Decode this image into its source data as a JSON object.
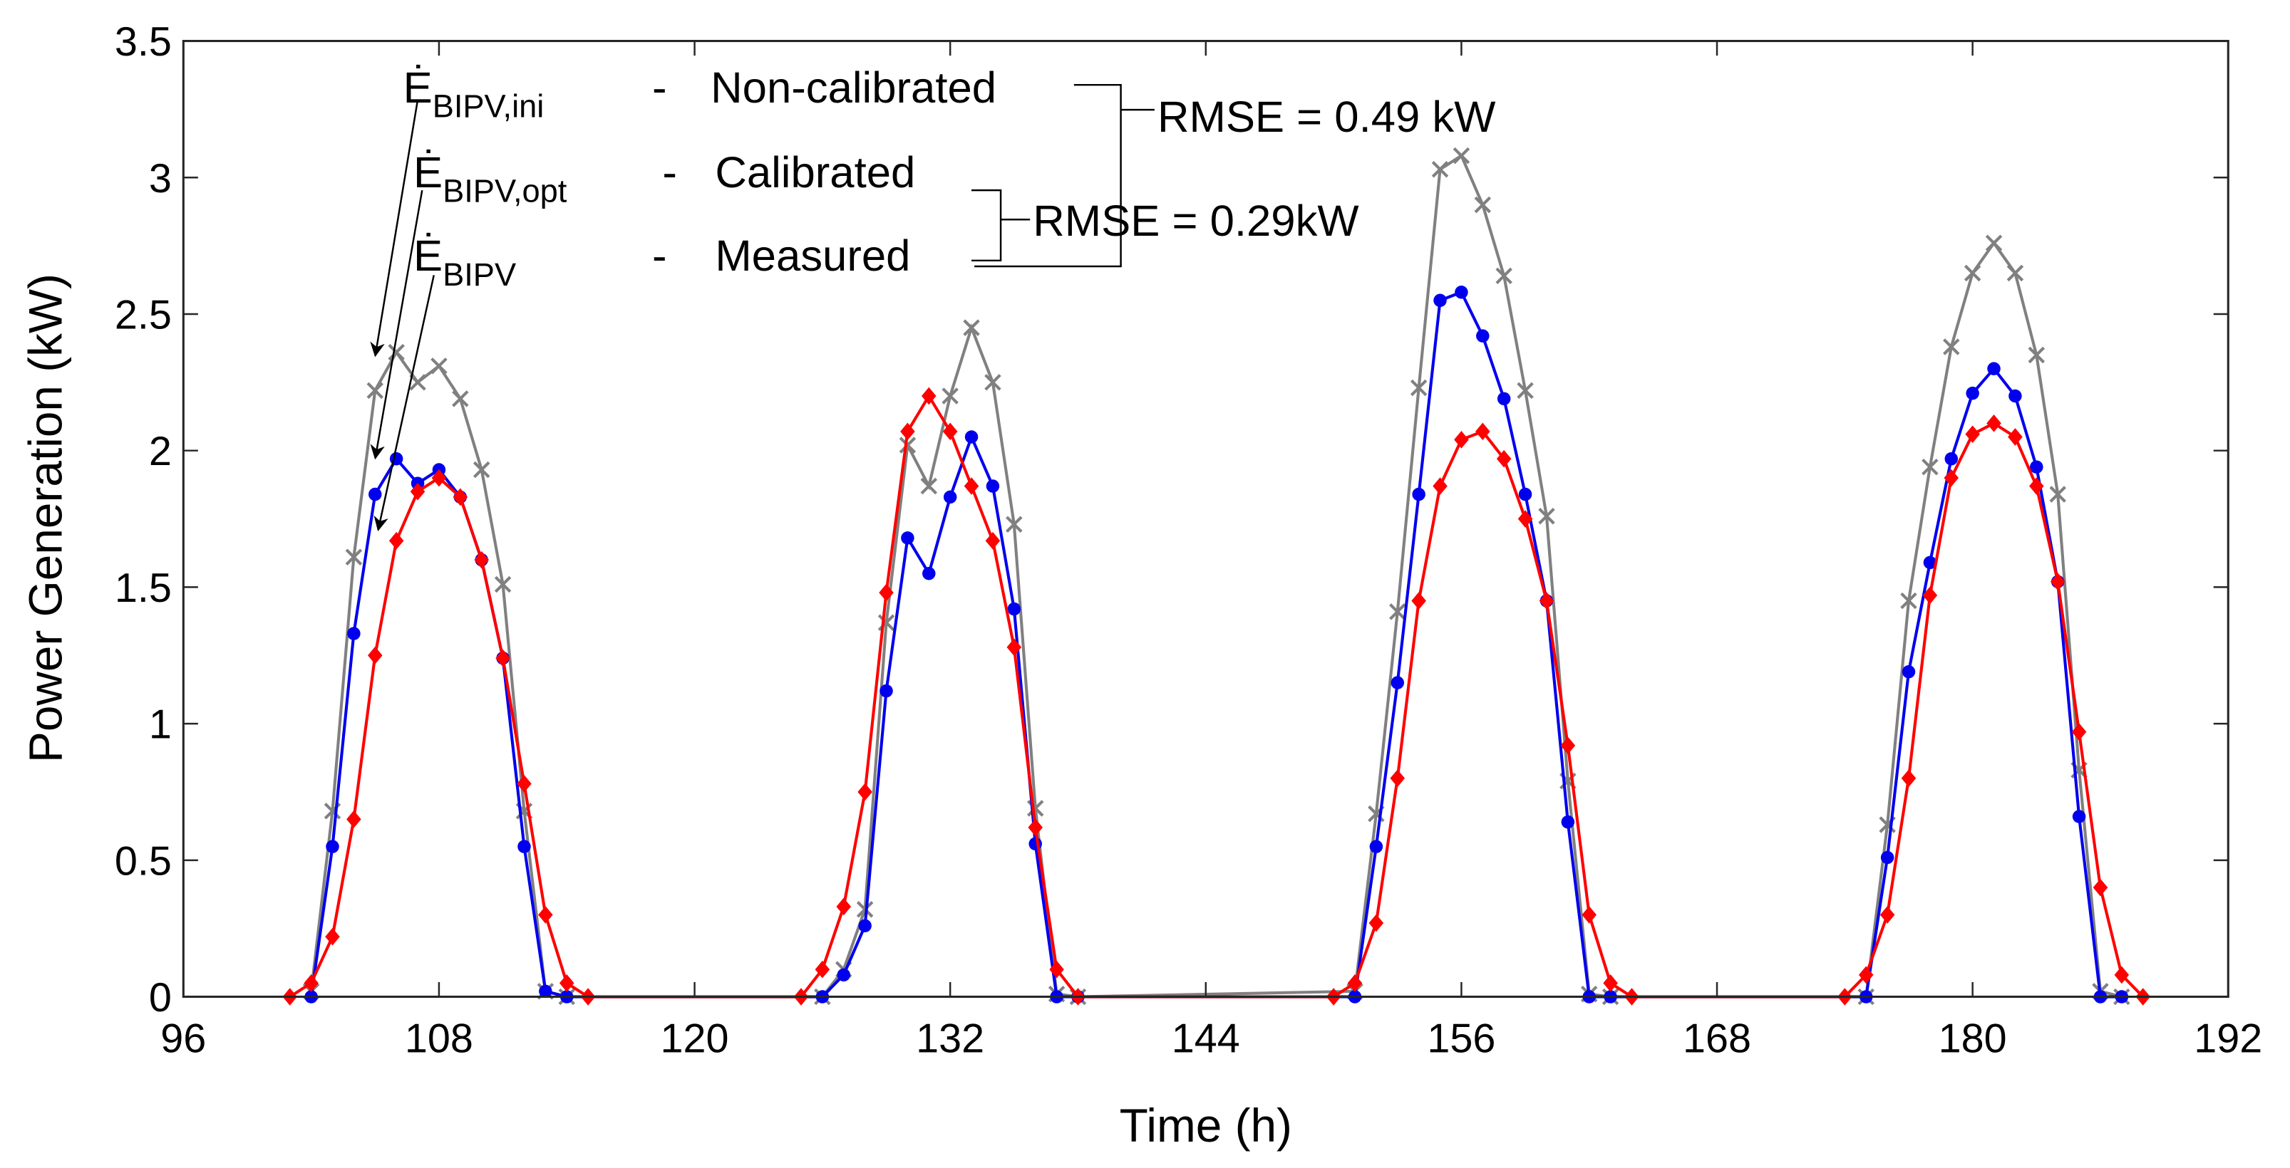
{
  "chart_data": {
    "type": "line",
    "xlabel": "Time (h)",
    "ylabel": "Power Generation (kW)",
    "xlim": [
      96,
      192
    ],
    "xticks": [
      96,
      108,
      120,
      132,
      144,
      156,
      168,
      180,
      192
    ],
    "ylim": [
      0,
      3.5
    ],
    "yticks": [
      0,
      0.5,
      1,
      1.5,
      2,
      2.5,
      3,
      3.5
    ],
    "grid": false,
    "annotations": [
      {
        "symbol": "Ė",
        "subscript": "BIPV,ini",
        "dash": "-",
        "label": "Non-calibrated"
      },
      {
        "symbol": "Ė",
        "subscript": "BIPV,opt",
        "dash": "-",
        "label": "Calibrated"
      },
      {
        "symbol": "Ė",
        "subscript": "BIPV",
        "dash": "-",
        "label": "Measured"
      }
    ],
    "rmse": [
      "RMSE = 0.49 kW",
      "RMSE = 0.29kW"
    ],
    "series": [
      {
        "name": "Non-calibrated",
        "color": "#808080",
        "marker": "x",
        "x": [
          102,
          103,
          104,
          105,
          106,
          107,
          108,
          109,
          110,
          111,
          112,
          113,
          114,
          126,
          127,
          128,
          129,
          130,
          131,
          132,
          133,
          134,
          135,
          136,
          137,
          138,
          151,
          152,
          153,
          154,
          155,
          156,
          157,
          158,
          159,
          160,
          161,
          162,
          163,
          175,
          176,
          177,
          178,
          179,
          180,
          181,
          182,
          183,
          184,
          185,
          186,
          187
        ],
        "values": [
          0.02,
          0.68,
          1.61,
          2.22,
          2.36,
          2.25,
          2.31,
          2.19,
          1.93,
          1.51,
          0.68,
          0.02,
          0,
          0,
          0.1,
          0.32,
          1.37,
          2.02,
          1.87,
          2.2,
          2.45,
          2.25,
          1.73,
          0.69,
          0.01,
          0,
          0.02,
          0.67,
          1.41,
          2.23,
          3.03,
          3.08,
          2.9,
          2.64,
          2.22,
          1.76,
          0.79,
          0.01,
          0,
          0,
          0.63,
          1.45,
          1.94,
          2.38,
          2.65,
          2.76,
          2.65,
          2.35,
          1.84,
          0.83,
          0.02,
          0
        ]
      },
      {
        "name": "Calibrated",
        "color": "#0000ee",
        "marker": "circle",
        "x": [
          102,
          103,
          104,
          105,
          106,
          107,
          108,
          109,
          110,
          111,
          112,
          113,
          114,
          126,
          127,
          128,
          129,
          130,
          131,
          132,
          133,
          134,
          135,
          136,
          137,
          138,
          151,
          152,
          153,
          154,
          155,
          156,
          157,
          158,
          159,
          160,
          161,
          162,
          163,
          175,
          176,
          177,
          178,
          179,
          180,
          181,
          182,
          183,
          184,
          185,
          186,
          187
        ],
        "values": [
          0,
          0.55,
          1.33,
          1.84,
          1.97,
          1.88,
          1.93,
          1.83,
          1.6,
          1.24,
          0.55,
          0.02,
          0,
          0,
          0.08,
          0.26,
          1.12,
          1.68,
          1.55,
          1.83,
          2.05,
          1.87,
          1.42,
          0.56,
          0,
          0,
          0,
          0.55,
          1.15,
          1.84,
          2.55,
          2.58,
          2.42,
          2.19,
          1.84,
          1.45,
          0.64,
          0,
          0,
          0,
          0.51,
          1.19,
          1.59,
          1.97,
          2.21,
          2.3,
          2.2,
          1.94,
          1.52,
          0.66,
          0,
          0
        ]
      },
      {
        "name": "Measured",
        "color": "#ff0000",
        "marker": "diamond",
        "x": [
          101,
          102,
          103,
          104,
          105,
          106,
          107,
          108,
          109,
          110,
          111,
          112,
          113,
          114,
          115,
          125,
          126,
          127,
          128,
          129,
          130,
          131,
          132,
          133,
          134,
          135,
          136,
          137,
          138,
          150,
          151,
          152,
          153,
          154,
          155,
          156,
          157,
          158,
          159,
          160,
          161,
          162,
          163,
          164,
          174,
          175,
          176,
          177,
          178,
          179,
          180,
          181,
          182,
          183,
          184,
          185,
          186,
          187,
          188
        ],
        "values": [
          0,
          0.05,
          0.22,
          0.65,
          1.25,
          1.67,
          1.85,
          1.9,
          1.83,
          1.6,
          1.24,
          0.78,
          0.3,
          0.05,
          0,
          0,
          0.1,
          0.33,
          0.75,
          1.48,
          2.07,
          2.2,
          2.07,
          1.87,
          1.67,
          1.28,
          0.62,
          0.1,
          0,
          0,
          0.05,
          0.27,
          0.8,
          1.45,
          1.87,
          2.04,
          2.07,
          1.97,
          1.75,
          1.45,
          0.92,
          0.3,
          0.05,
          0,
          0,
          0.08,
          0.3,
          0.8,
          1.47,
          1.9,
          2.06,
          2.1,
          2.05,
          1.87,
          1.52,
          0.97,
          0.4,
          0.08,
          0
        ]
      }
    ]
  }
}
